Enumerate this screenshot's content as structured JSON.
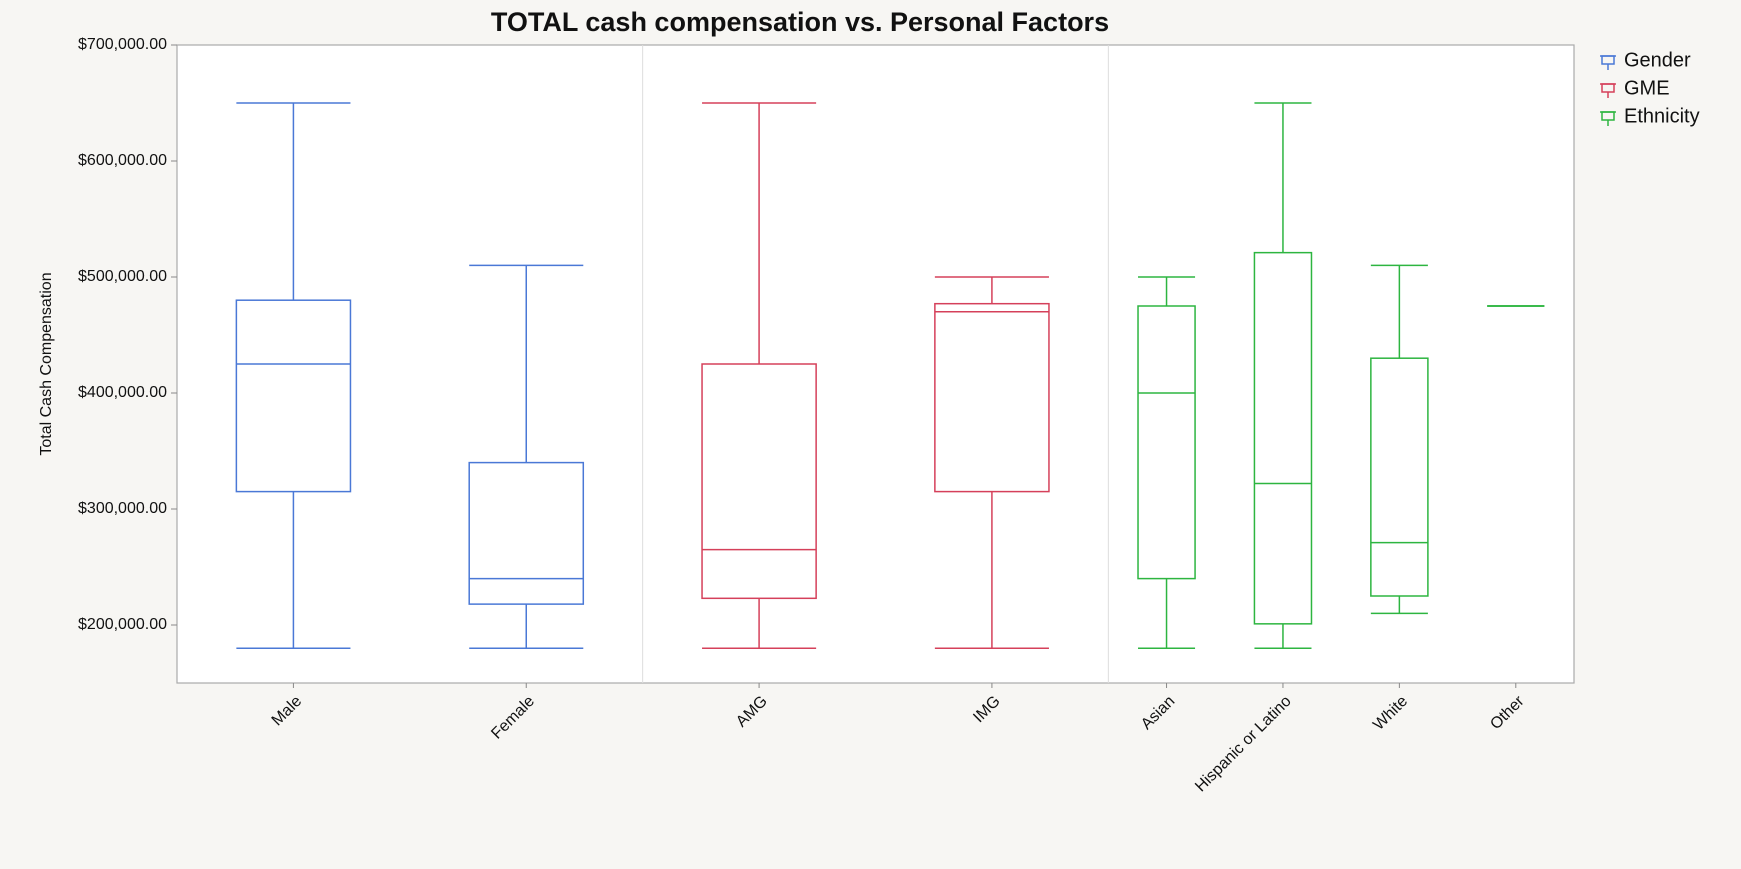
{
  "chart_data": {
    "type": "box",
    "title": "TOTAL cash compensation vs. Personal Factors",
    "y_label": "Total Cash Compensation",
    "ylim": [
      150000,
      700000
    ],
    "yticks": [
      {
        "value": 200000,
        "label": "$200,000.00"
      },
      {
        "value": 300000,
        "label": "$300,000.00"
      },
      {
        "value": 400000,
        "label": "$400,000.00"
      },
      {
        "value": 500000,
        "label": "$500,000.00"
      },
      {
        "value": 600000,
        "label": "$600,000.00"
      },
      {
        "value": 700000,
        "label": "$700,000.00"
      }
    ],
    "legend": "top-right",
    "series": [
      {
        "name": "Gender",
        "color": "#4a78d6",
        "categories": [
          "Male",
          "Female"
        ],
        "min": [
          180000,
          180000
        ],
        "q1": [
          315000,
          218000
        ],
        "median": [
          425000,
          240000
        ],
        "q3": [
          480000,
          340000
        ],
        "max": [
          650000,
          510000
        ]
      },
      {
        "name": "GME",
        "color": "#d5405a",
        "categories": [
          "AMG",
          "IMG"
        ],
        "min": [
          180000,
          180000
        ],
        "q1": [
          223000,
          315000
        ],
        "median": [
          265000,
          470000
        ],
        "q3": [
          425000,
          477000
        ],
        "max": [
          650000,
          500000
        ]
      },
      {
        "name": "Ethnicity",
        "color": "#2db540",
        "categories": [
          "Asian",
          "Hispanic or Latino",
          "White",
          "Other"
        ],
        "min": [
          180000,
          180000,
          210000,
          475000
        ],
        "q1": [
          240000,
          201000,
          225000,
          475000
        ],
        "median": [
          400000,
          322000,
          271000,
          475000
        ],
        "q3": [
          475000,
          521000,
          430000,
          475000
        ],
        "max": [
          500000,
          650000,
          510000,
          475000
        ]
      }
    ]
  }
}
